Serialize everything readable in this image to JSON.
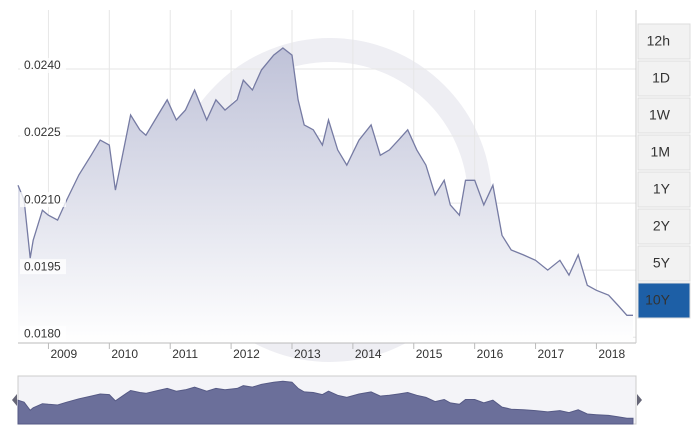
{
  "chart_data": {
    "type": "area",
    "x": [
      2008.5,
      2008.6,
      2008.7,
      2008.75,
      2008.9,
      2009.0,
      2009.15,
      2009.3,
      2009.5,
      2009.7,
      2009.85,
      2010.0,
      2010.1,
      2010.2,
      2010.35,
      2010.5,
      2010.6,
      2010.8,
      2010.95,
      2011.1,
      2011.25,
      2011.4,
      2011.6,
      2011.75,
      2011.9,
      2012.1,
      2012.2,
      2012.35,
      2012.5,
      2012.7,
      2012.85,
      2013.0,
      2013.1,
      2013.2,
      2013.35,
      2013.5,
      2013.6,
      2013.75,
      2013.9,
      2014.1,
      2014.3,
      2014.45,
      2014.6,
      2014.75,
      2014.9,
      2015.05,
      2015.2,
      2015.35,
      2015.5,
      2015.6,
      2015.75,
      2015.85,
      2016.0,
      2016.15,
      2016.3,
      2016.45,
      2016.6,
      2016.8,
      2017.0,
      2017.2,
      2017.4,
      2017.55,
      2017.7,
      2017.85,
      2018.0,
      2018.2,
      2018.35,
      2018.5,
      2018.6
    ],
    "values": [
      0.0214,
      0.02107,
      0.01977,
      0.02017,
      0.02084,
      0.02073,
      0.02062,
      0.02107,
      0.02163,
      0.02207,
      0.02241,
      0.0223,
      0.02129,
      0.02196,
      0.02297,
      0.02264,
      0.02252,
      0.02297,
      0.02331,
      0.02286,
      0.02308,
      0.02353,
      0.02286,
      0.02331,
      0.02308,
      0.02331,
      0.02375,
      0.02353,
      0.02398,
      0.02431,
      0.02447,
      0.02431,
      0.02331,
      0.02275,
      0.02264,
      0.0223,
      0.02286,
      0.02219,
      0.02185,
      0.02241,
      0.02275,
      0.02207,
      0.02219,
      0.02241,
      0.02264,
      0.02219,
      0.02185,
      0.02118,
      0.02151,
      0.02096,
      0.02073,
      0.02151,
      0.02151,
      0.02096,
      0.0214,
      0.02028,
      0.01995,
      0.01984,
      0.01972,
      0.0195,
      0.01972,
      0.01939,
      0.01984,
      0.01916,
      0.01905,
      0.01894,
      0.01872,
      0.01849,
      0.01849
    ],
    "color": "#767ba3",
    "xlim": [
      2008.5,
      2018.65
    ],
    "xticks": [
      2009,
      2010,
      2011,
      2012,
      2013,
      2014,
      2015,
      2016,
      2017,
      2018
    ],
    "ylim": [
      0.01787,
      0.02532
    ],
    "yticks": [
      {
        "value": 0.018,
        "label": "0.0180"
      },
      0.0195,
      {
        "value": 0.021,
        "label": "0.0210"
      },
      0.0225,
      {
        "value": 0.024,
        "label": "0.0240"
      }
    ],
    "grid": true
  },
  "range_buttons": [
    "12h",
    "1D",
    "1W",
    "1M",
    "1Y",
    "2Y",
    "5Y",
    "10Y"
  ],
  "selected_range": "10Y"
}
